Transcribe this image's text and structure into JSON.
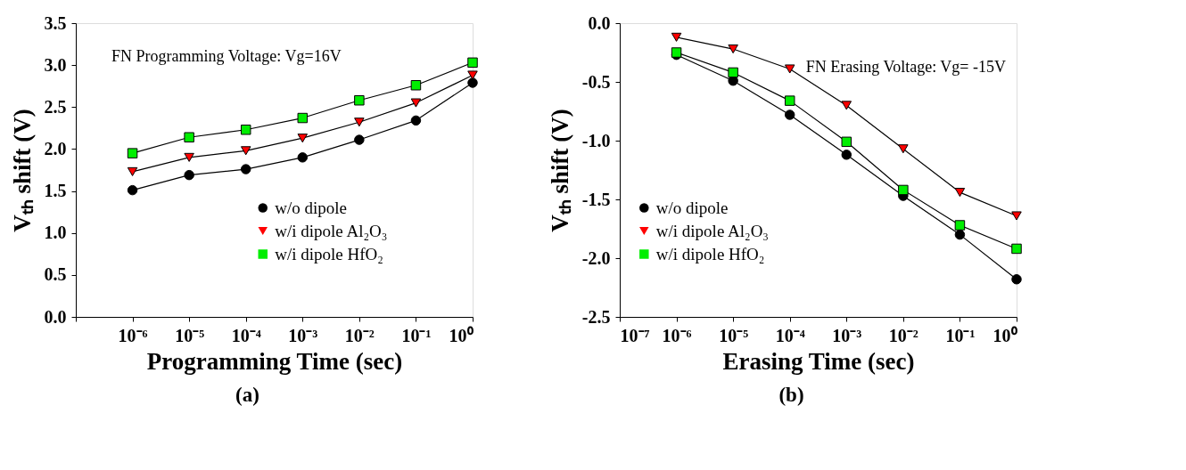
{
  "chart_data": [
    {
      "type": "line",
      "xlabel": "Programming Time (sec)",
      "ylabel": "Vₜₕ shift (V)",
      "log": "x",
      "grid": false,
      "legend": "bottom",
      "line_style": "solid",
      "x": [
        1e-06,
        1e-05,
        0.0001,
        0.001,
        0.01,
        0.1,
        1
      ],
      "xlim": [
        1e-07,
        1
      ],
      "xticks": [
        {
          "value": 1e-07,
          "label": null
        },
        {
          "value": 1e-06,
          "label": "10⁻⁶"
        },
        {
          "value": 1e-05,
          "label": "10⁻⁵"
        },
        {
          "value": 0.0001,
          "label": "10⁻⁴"
        },
        {
          "value": 0.001,
          "label": "10⁻³"
        },
        {
          "value": 0.01,
          "label": "10⁻²"
        },
        {
          "value": 0.1,
          "label": "10⁻¹"
        },
        {
          "value": 1,
          "label": "10⁰"
        }
      ],
      "ylim": [
        0,
        3.5
      ],
      "yticks": [
        {
          "value": 0,
          "label": "0.0"
        },
        0.5,
        {
          "value": 1,
          "label": "1.0"
        },
        1.5,
        {
          "value": 2,
          "label": "2.0"
        },
        2.5,
        {
          "value": 3,
          "label": "3.0"
        },
        3.5
      ],
      "series": [
        {
          "name": "w/o dipole",
          "color": "#000000",
          "marker": "circle",
          "values": [
            1.51,
            1.69,
            1.76,
            1.9,
            2.11,
            2.34,
            2.79
          ]
        },
        {
          "name": "w/i dipole Al₂O₃",
          "color": "#ff0000",
          "marker": "triangle",
          "values": [
            1.73,
            1.9,
            1.98,
            2.13,
            2.32,
            2.55,
            2.88
          ]
        },
        {
          "name": "w/i dipole HfO₂",
          "color": "#00ee00",
          "marker": "square",
          "values": [
            1.95,
            2.14,
            2.23,
            2.37,
            2.58,
            2.76,
            3.03
          ]
        }
      ],
      "annotations": [
        "FN Programming Voltage: Vg=16V",
        "(a)"
      ]
    },
    {
      "type": "line",
      "xlabel": "Erasing Time (sec)",
      "ylabel": "Vₜₕ shift (V)",
      "log": "x",
      "grid": false,
      "legend": "bottom left",
      "line_style": "solid",
      "x": [
        1e-06,
        1e-05,
        0.0001,
        0.001,
        0.01,
        0.1,
        1
      ],
      "xlim": [
        1e-07,
        1
      ],
      "xticks": [
        {
          "value": 1e-07,
          "label": "10⁻⁷"
        },
        {
          "value": 1e-06,
          "label": "10⁻⁶"
        },
        {
          "value": 1e-05,
          "label": "10⁻⁵"
        },
        {
          "value": 0.0001,
          "label": "10⁻⁴"
        },
        {
          "value": 0.001,
          "label": "10⁻³"
        },
        {
          "value": 0.01,
          "label": "10⁻²"
        },
        {
          "value": 0.1,
          "label": "10⁻¹"
        },
        {
          "value": 1,
          "label": "10⁰"
        }
      ],
      "ylim": [
        -2.5,
        0
      ],
      "yticks": [
        -2.5,
        {
          "value": -2,
          "label": "-2.0"
        },
        -1.5,
        {
          "value": -1,
          "label": "-1.0"
        },
        -0.5,
        {
          "value": 0,
          "label": "0.0"
        }
      ],
      "series": [
        {
          "name": "w/o dipole",
          "color": "#000000",
          "marker": "circle",
          "values": [
            -0.27,
            -0.49,
            -0.78,
            -1.12,
            -1.47,
            -1.8,
            -2.18
          ]
        },
        {
          "name": "w/i dipole Al₂O₃",
          "color": "#ff0000",
          "marker": "triangle",
          "values": [
            -0.12,
            -0.22,
            -0.39,
            -0.7,
            -1.07,
            -1.44,
            -1.64
          ]
        },
        {
          "name": "w/i dipole HfO₂",
          "color": "#00ee00",
          "marker": "square",
          "values": [
            -0.25,
            -0.42,
            -0.66,
            -1.01,
            -1.42,
            -1.72,
            -1.92
          ]
        }
      ],
      "annotations": [
        "FN Erasing Voltage: Vg= -15V",
        "(b)"
      ]
    }
  ]
}
